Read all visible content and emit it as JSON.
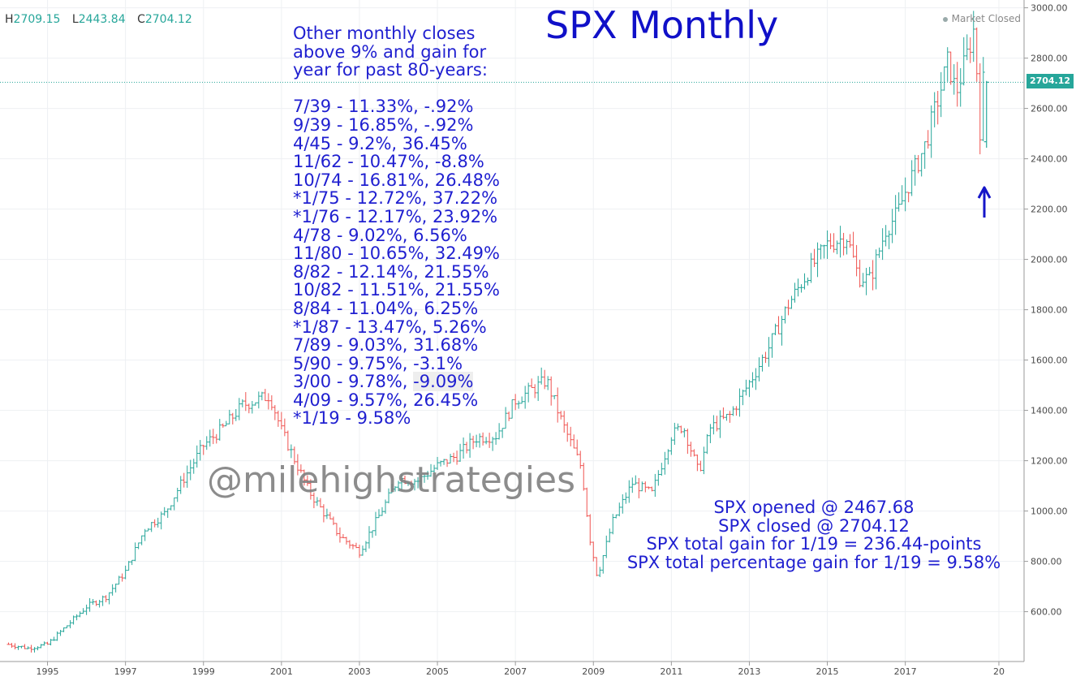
{
  "header": {
    "h_label": "H",
    "h_value": "2709.15",
    "l_label": "L",
    "l_value": "2443.84",
    "c_label": "C",
    "c_value": "2704.12",
    "market_status": "Market Closed"
  },
  "title": "SPX Monthly",
  "notes": {
    "intro": [
      "Other monthly closes",
      "above 9% and gain for",
      "year for past 80-years:"
    ],
    "entries": [
      "7/39 - 11.33%, -.92%",
      "9/39 - 16.85%, -.92%",
      "4/45 - 9.2%, 36.45%",
      "11/62 - 10.47%, -8.8%",
      "10/74 - 16.81%, 26.48%",
      "*1/75 - 12.72%, 37.22%",
      "*1/76 - 12.17%, 23.92%",
      "4/78 - 9.02%, 6.56%",
      "11/80 - 10.65%, 32.49%",
      "8/82 - 12.14%, 21.55%",
      "10/82 - 11.51%, 21.55%",
      "8/84 - 11.04%, 6.25%",
      "*1/87 - 13.47%, 5.26%",
      "7/89 - 9.03%, 31.68%",
      "5/90 - 9.75%, -3.1%",
      "3/00 - 9.78%, ",
      "4/09 - 9.57%, 26.45%",
      "*1/19 - 9.58%"
    ],
    "highlight": "-9.09%"
  },
  "watermark": "@milehighstrategies",
  "summary": [
    "SPX opened @ 2467.68",
    "SPX closed @ 2704.12",
    "SPX total gain for 1/19 = 236.44-points",
    "SPX total percentage gain for 1/19 = 9.58%"
  ],
  "last_price_tag": "2704.12",
  "colors": {
    "up": "#26a69a",
    "down": "#ef5350",
    "annotation": "#1f1fd0",
    "title": "#1010c8"
  },
  "chart_data": {
    "type": "ohlc",
    "title": "SPX Monthly",
    "xlabel": "",
    "ylabel": "",
    "x_ticks": [
      "1995",
      "1997",
      "1999",
      "2001",
      "2003",
      "2005",
      "2007",
      "2009",
      "2011",
      "2013",
      "2015",
      "2017",
      "20"
    ],
    "y_ticks": [
      "600.00",
      "800.00",
      "1000.00",
      "1200.00",
      "1400.00",
      "1600.00",
      "1800.00",
      "2000.00",
      "2200.00",
      "2400.00",
      "2600.00",
      "2800.00",
      "3000.00"
    ],
    "ylim": [
      420,
      3010
    ],
    "xlim": [
      1993.8,
      2019.5
    ],
    "grid": true,
    "last_price": 2704.12,
    "close_path": [
      [
        1994.0,
        470
      ],
      [
        1994.5,
        455
      ],
      [
        1995.0,
        470
      ],
      [
        1995.5,
        545
      ],
      [
        1996.0,
        620
      ],
      [
        1996.5,
        660
      ],
      [
        1997.0,
        760
      ],
      [
        1997.5,
        930
      ],
      [
        1998.0,
        990
      ],
      [
        1998.5,
        1130
      ],
      [
        1999.0,
        1260
      ],
      [
        1999.5,
        1330
      ],
      [
        2000.0,
        1420
      ],
      [
        2000.7,
        1460
      ],
      [
        2001.0,
        1320
      ],
      [
        2001.7,
        1080
      ],
      [
        2002.5,
        900
      ],
      [
        2003.0,
        840
      ],
      [
        2003.5,
        980
      ],
      [
        2004.0,
        1130
      ],
      [
        2004.5,
        1120
      ],
      [
        2005.0,
        1180
      ],
      [
        2005.5,
        1220
      ],
      [
        2006.0,
        1290
      ],
      [
        2006.5,
        1300
      ],
      [
        2007.0,
        1440
      ],
      [
        2007.8,
        1520
      ],
      [
        2008.2,
        1350
      ],
      [
        2008.7,
        1170
      ],
      [
        2008.9,
        900
      ],
      [
        2009.1,
        740
      ],
      [
        2009.5,
        960
      ],
      [
        2010.0,
        1110
      ],
      [
        2010.5,
        1070
      ],
      [
        2011.0,
        1300
      ],
      [
        2011.3,
        1340
      ],
      [
        2011.7,
        1150
      ],
      [
        2012.0,
        1330
      ],
      [
        2012.5,
        1380
      ],
      [
        2013.0,
        1510
      ],
      [
        2013.5,
        1650
      ],
      [
        2014.0,
        1820
      ],
      [
        2014.5,
        1950
      ],
      [
        2015.0,
        2060
      ],
      [
        2015.5,
        2090
      ],
      [
        2015.8,
        1930
      ],
      [
        2016.1,
        1920
      ],
      [
        2016.5,
        2120
      ],
      [
        2016.8,
        2180
      ],
      [
        2017.0,
        2270
      ],
      [
        2017.5,
        2450
      ],
      [
        2017.9,
        2670
      ],
      [
        2018.1,
        2790
      ],
      [
        2018.3,
        2660
      ],
      [
        2018.6,
        2820
      ],
      [
        2018.75,
        2910
      ],
      [
        2018.85,
        2720
      ],
      [
        2018.92,
        2510
      ],
      [
        2019.0,
        2704
      ]
    ]
  }
}
